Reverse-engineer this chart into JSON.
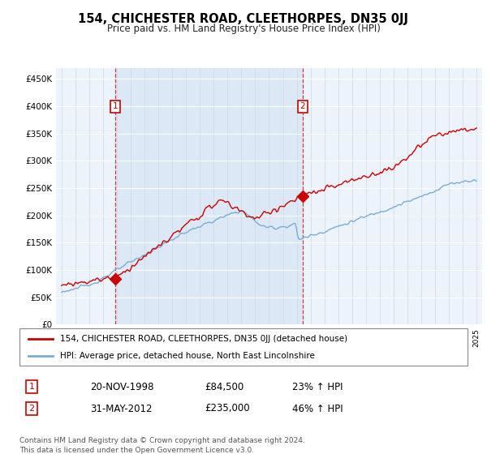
{
  "title": "154, CHICHESTER ROAD, CLEETHORPES, DN35 0JJ",
  "subtitle": "Price paid vs. HM Land Registry's House Price Index (HPI)",
  "ylim": [
    0,
    470000
  ],
  "yticks": [
    0,
    50000,
    100000,
    150000,
    200000,
    250000,
    300000,
    350000,
    400000,
    450000
  ],
  "ytick_labels": [
    "£0",
    "£50K",
    "£100K",
    "£150K",
    "£200K",
    "£250K",
    "£300K",
    "£350K",
    "£400K",
    "£450K"
  ],
  "red_color": "#cc0000",
  "blue_color": "#7aadd4",
  "shade_color": "#dce8f5",
  "marker1_date": 1998.9,
  "marker1_price": 84500,
  "marker2_date": 2012.42,
  "marker2_price": 235000,
  "legend_line1": "154, CHICHESTER ROAD, CLEETHORPES, DN35 0JJ (detached house)",
  "legend_line2": "HPI: Average price, detached house, North East Lincolnshire",
  "table_row1": [
    "1",
    "20-NOV-1998",
    "£84,500",
    "23% ↑ HPI"
  ],
  "table_row2": [
    "2",
    "31-MAY-2012",
    "£235,000",
    "46% ↑ HPI"
  ],
  "footer": "Contains HM Land Registry data © Crown copyright and database right 2024.\nThis data is licensed under the Open Government Licence v3.0."
}
